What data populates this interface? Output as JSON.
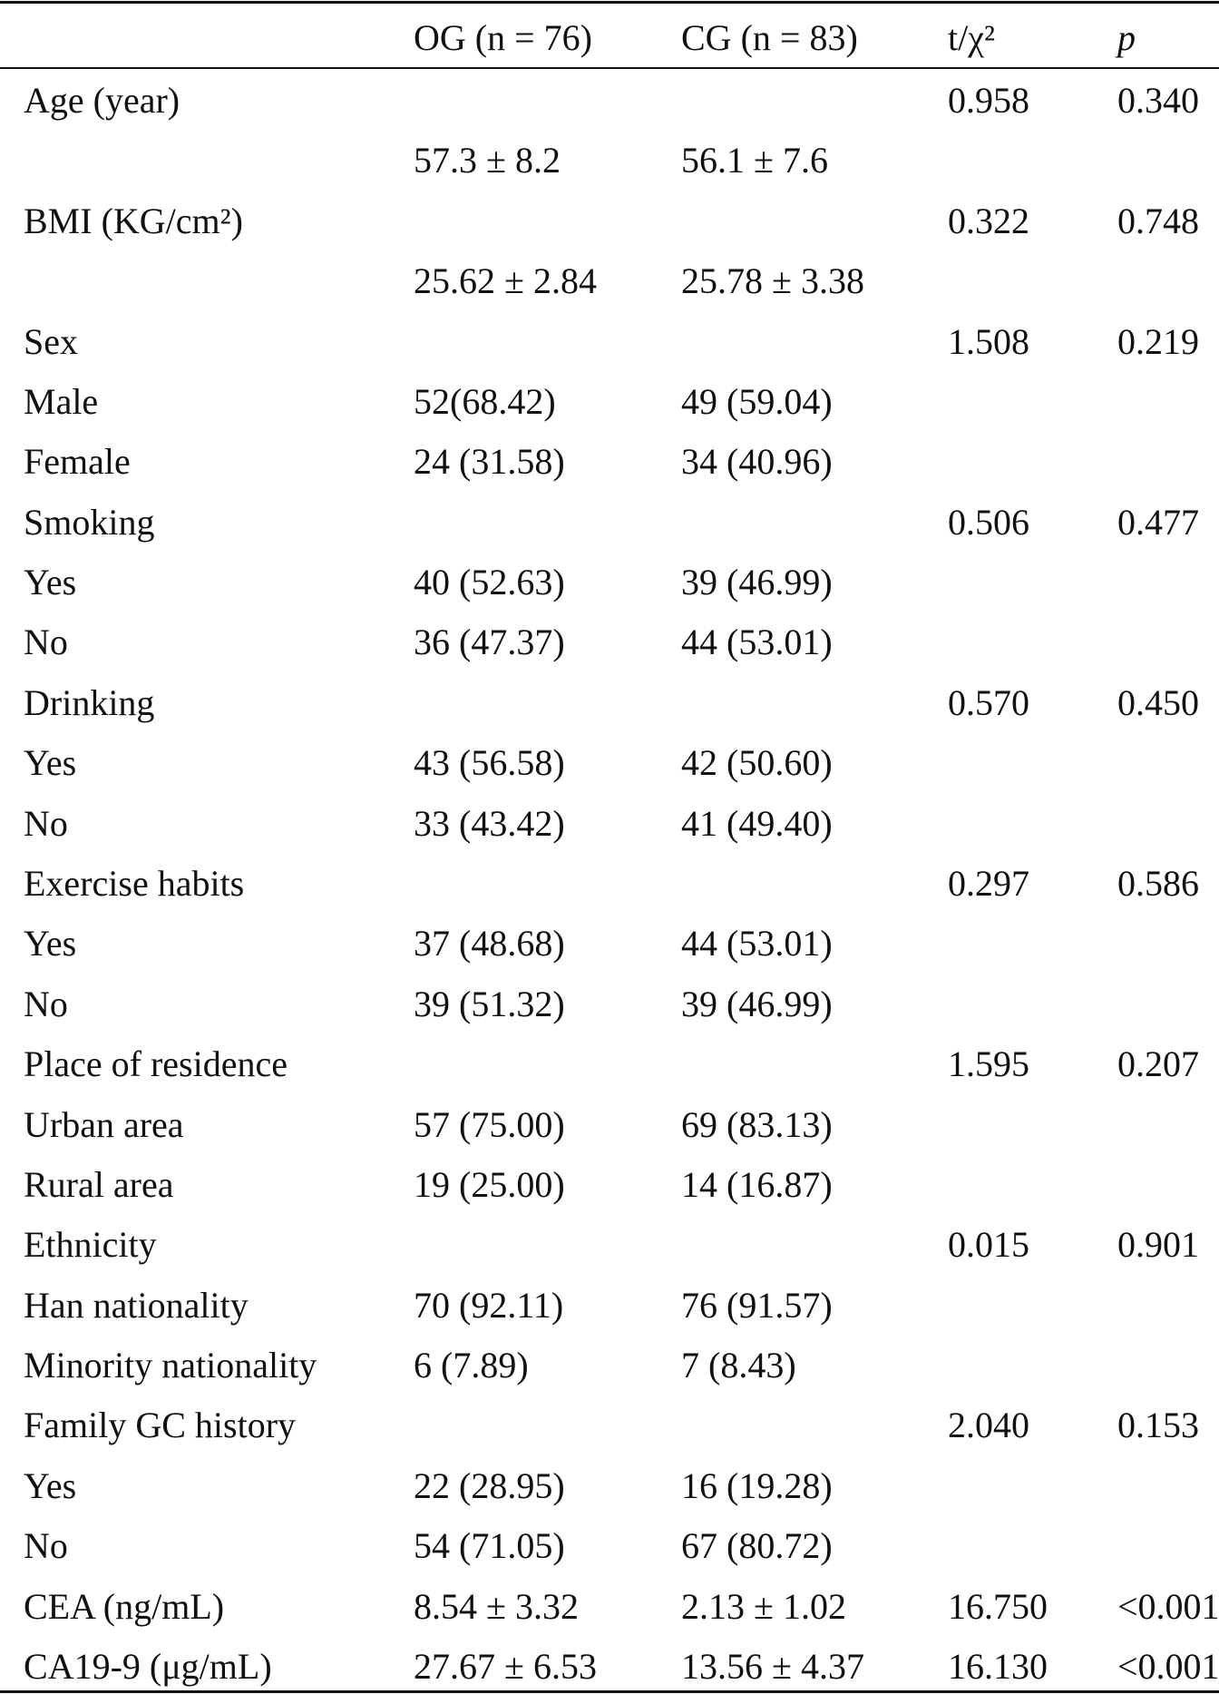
{
  "table": {
    "header": [
      null,
      "OG (n = 76)",
      "CG (n = 83)",
      "t/χ²",
      "p"
    ],
    "rows": [
      [
        "Age (year)",
        null,
        null,
        "0.958",
        "0.340"
      ],
      [
        null,
        "57.3 ± 8.2",
        "56.1 ± 7.6",
        null,
        null
      ],
      [
        "BMI (KG/cm²)",
        null,
        null,
        "0.322",
        "0.748"
      ],
      [
        null,
        "25.62 ± 2.84",
        "25.78 ± 3.38",
        null,
        null
      ],
      [
        "Sex",
        null,
        null,
        "1.508",
        "0.219"
      ],
      [
        "Male",
        "52(68.42)",
        "49 (59.04)",
        null,
        null
      ],
      [
        "Female",
        "24 (31.58)",
        "34 (40.96)",
        null,
        null
      ],
      [
        "Smoking",
        null,
        null,
        "0.506",
        "0.477"
      ],
      [
        "Yes",
        "40 (52.63)",
        "39 (46.99)",
        null,
        null
      ],
      [
        "No",
        "36 (47.37)",
        "44 (53.01)",
        null,
        null
      ],
      [
        "Drinking",
        null,
        null,
        "0.570",
        "0.450"
      ],
      [
        "Yes",
        "43 (56.58)",
        "42 (50.60)",
        null,
        null
      ],
      [
        "No",
        "33 (43.42)",
        "41 (49.40)",
        null,
        null
      ],
      [
        "Exercise habits",
        null,
        null,
        "0.297",
        "0.586"
      ],
      [
        "Yes",
        "37 (48.68)",
        "44 (53.01)",
        null,
        null
      ],
      [
        "No",
        "39 (51.32)",
        "39 (46.99)",
        null,
        null
      ],
      [
        "Place of residence",
        null,
        null,
        "1.595",
        "0.207"
      ],
      [
        "Urban area",
        "57 (75.00)",
        "69 (83.13)",
        null,
        null
      ],
      [
        "Rural area",
        "19 (25.00)",
        "14 (16.87)",
        null,
        null
      ],
      [
        "Ethnicity",
        null,
        null,
        "0.015",
        "0.901"
      ],
      [
        "Han nationality",
        "70 (92.11)",
        "76 (91.57)",
        null,
        null
      ],
      [
        "Minority nationality",
        "6 (7.89)",
        "7 (8.43)",
        null,
        null
      ],
      [
        "Family GC history",
        null,
        null,
        "2.040",
        "0.153"
      ],
      [
        "Yes",
        "22 (28.95)",
        "16 (19.28)",
        null,
        null
      ],
      [
        "No",
        "54 (71.05)",
        "67 (80.72)",
        null,
        null
      ],
      [
        "CEA (ng/mL)",
        "8.54 ± 3.32",
        "2.13 ± 1.02",
        "16.750",
        "<0.001"
      ],
      [
        "CA19-9 (μg/mL)",
        "27.67 ± 6.53",
        "13.56 ± 4.37",
        "16.130",
        "<0.001"
      ]
    ]
  }
}
